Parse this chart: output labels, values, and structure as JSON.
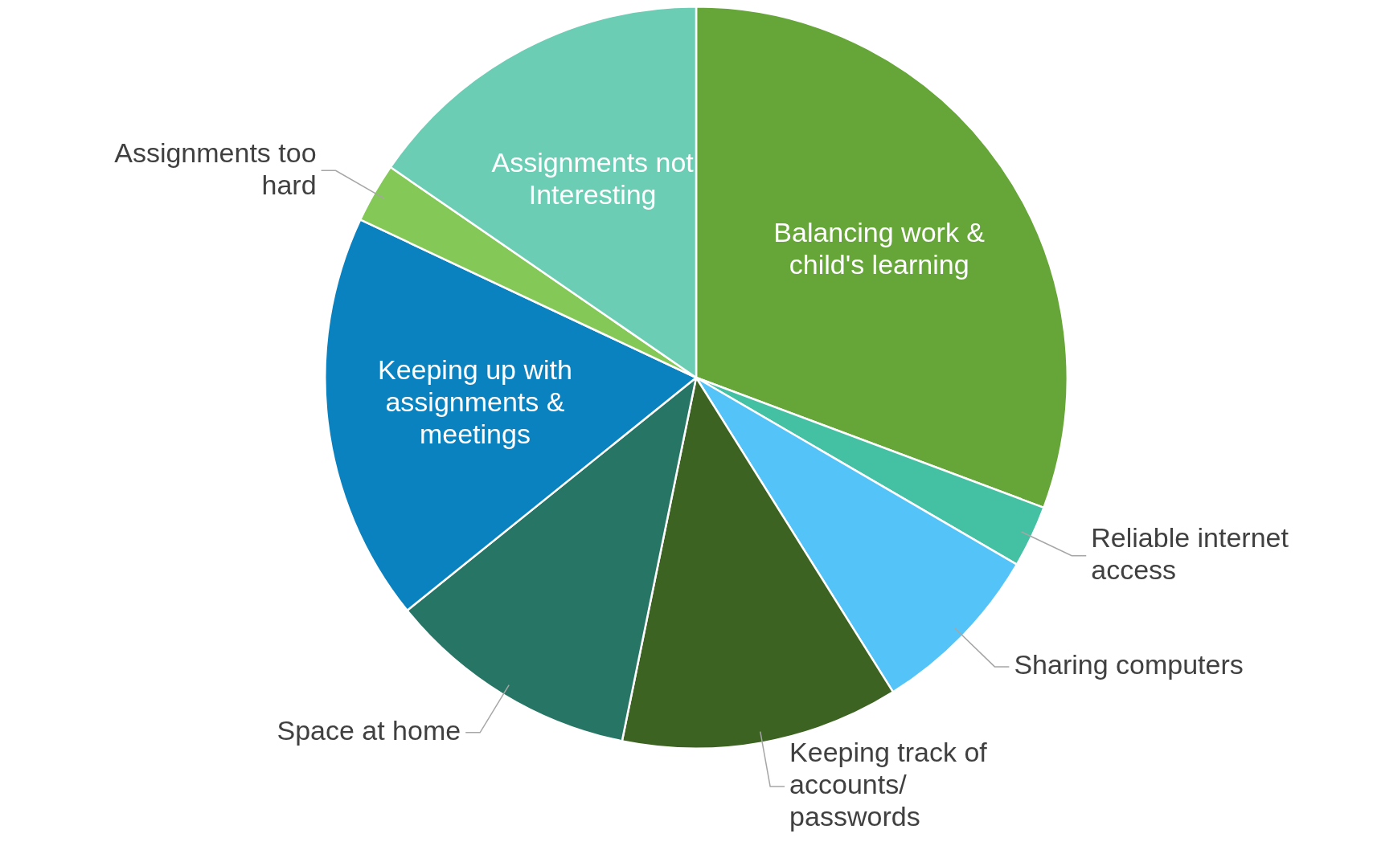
{
  "chart_data": {
    "type": "pie",
    "categories": [
      "Balancing work & child's learning",
      "Reliable internet access",
      "Sharing computers",
      "Keeping track of accounts/ passwords",
      "Space at home",
      "Keeping up with assignments & meetings",
      "Assignments too hard",
      "Assignments not Interesting"
    ],
    "values": [
      30.7,
      2.7,
      7.7,
      12.1,
      11.0,
      17.8,
      2.6,
      15.4
    ],
    "colors": [
      "#66a538",
      "#44c1a3",
      "#54c3f8",
      "#3c6322",
      "#277665",
      "#0a82c0",
      "#84c857",
      "#6ccdb5"
    ],
    "legend": false
  }
}
